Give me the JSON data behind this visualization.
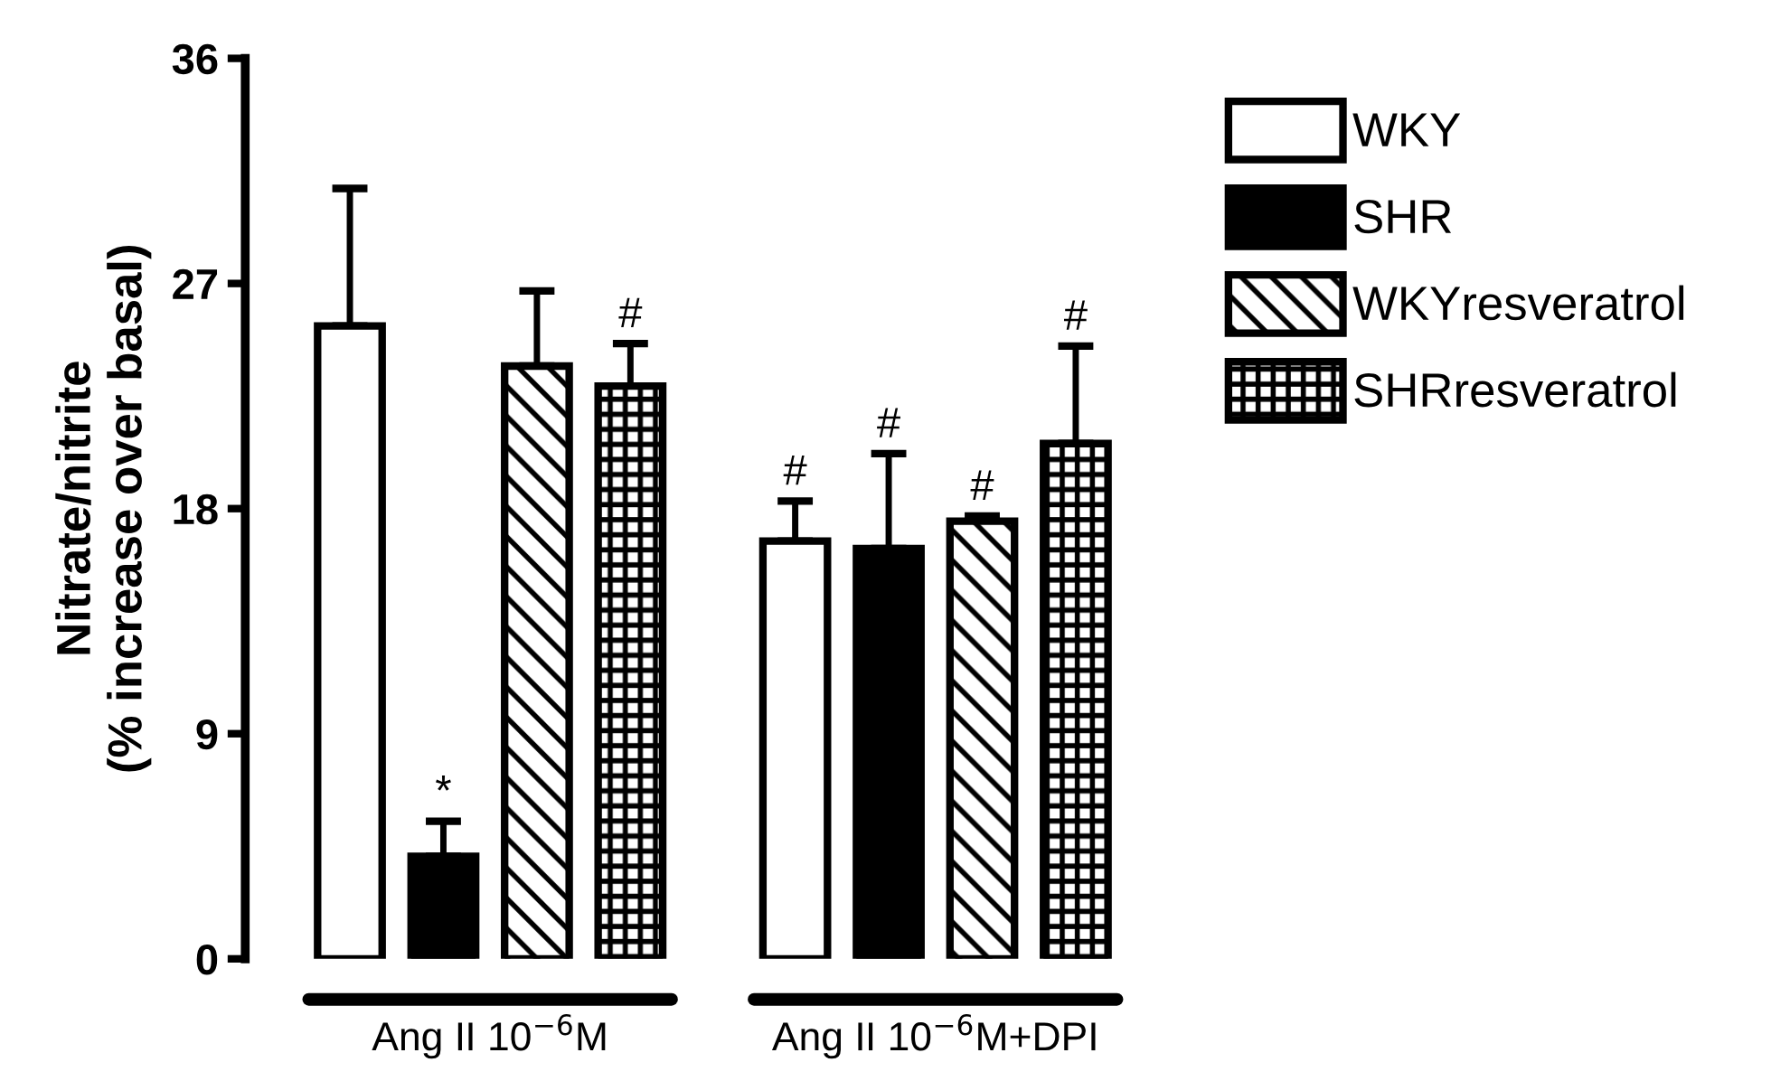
{
  "chart_data": {
    "type": "bar",
    "ylabel": "Nitrate/nitrite\n(% increase over basal)",
    "categories": [
      "Ang II 10$^{−6}$M",
      "Ang II 10$^{−6}$M+DPI"
    ],
    "series": [
      {
        "name": "WKY",
        "color": "#ffffff",
        "values": [
          25.3,
          16.7
        ],
        "errors": [
          5.5,
          1.6
        ],
        "value_labels": [
          null,
          "#"
        ]
      },
      {
        "name": "SHR",
        "color": "#000000",
        "values": [
          4.1,
          16.4
        ],
        "errors": [
          1.4,
          3.8
        ],
        "value_labels": [
          "*",
          "#"
        ]
      },
      {
        "name": "WKYresveratrol",
        "color": "#000000",
        "values": [
          23.7,
          17.5
        ],
        "errors": [
          3.0,
          0.2
        ],
        "value_labels": [
          null,
          "#"
        ]
      },
      {
        "name": "SHRresveratrol",
        "color": "#000000",
        "values": [
          22.9,
          20.6
        ],
        "errors": [
          1.7,
          3.9
        ],
        "value_labels": [
          "#",
          "#"
        ]
      }
    ],
    "ylim": [
      0,
      36
    ],
    "yticks": [
      0,
      9,
      18,
      27,
      36
    ],
    "grid": false,
    "legend": "top right"
  }
}
